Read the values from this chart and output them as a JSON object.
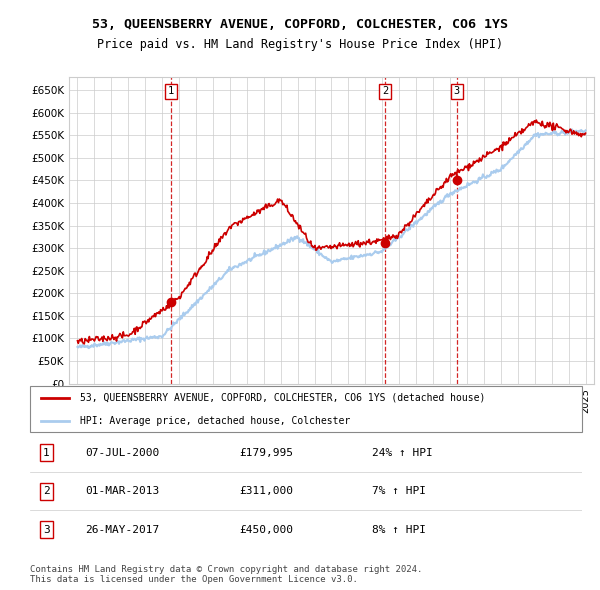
{
  "title": "53, QUEENSBERRY AVENUE, COPFORD, COLCHESTER, CO6 1YS",
  "subtitle": "Price paid vs. HM Land Registry's House Price Index (HPI)",
  "legend_line1": "53, QUEENSBERRY AVENUE, COPFORD, COLCHESTER, CO6 1YS (detached house)",
  "legend_line2": "HPI: Average price, detached house, Colchester",
  "footer": "Contains HM Land Registry data © Crown copyright and database right 2024.\nThis data is licensed under the Open Government Licence v3.0.",
  "transactions": [
    {
      "num": 1,
      "date": "07-JUL-2000",
      "price": "£179,995",
      "hpi": "24% ↑ HPI",
      "year": 2000.52
    },
    {
      "num": 2,
      "date": "01-MAR-2013",
      "price": "£311,000",
      "hpi": "7% ↑ HPI",
      "year": 2013.17
    },
    {
      "num": 3,
      "date": "26-MAY-2017",
      "price": "£450,000",
      "hpi": "8% ↑ HPI",
      "year": 2017.4
    }
  ],
  "ylim": [
    0,
    680000
  ],
  "yticks": [
    0,
    50000,
    100000,
    150000,
    200000,
    250000,
    300000,
    350000,
    400000,
    450000,
    500000,
    550000,
    600000,
    650000
  ],
  "ytick_labels": [
    "£0",
    "£50K",
    "£100K",
    "£150K",
    "£200K",
    "£250K",
    "£300K",
    "£350K",
    "£400K",
    "£450K",
    "£500K",
    "£550K",
    "£600K",
    "£650K"
  ],
  "color_red": "#cc0000",
  "color_blue": "#aaccee",
  "color_grid": "#cccccc",
  "color_vline": "#cc0000",
  "trans_prices": [
    179995,
    311000,
    450000
  ]
}
